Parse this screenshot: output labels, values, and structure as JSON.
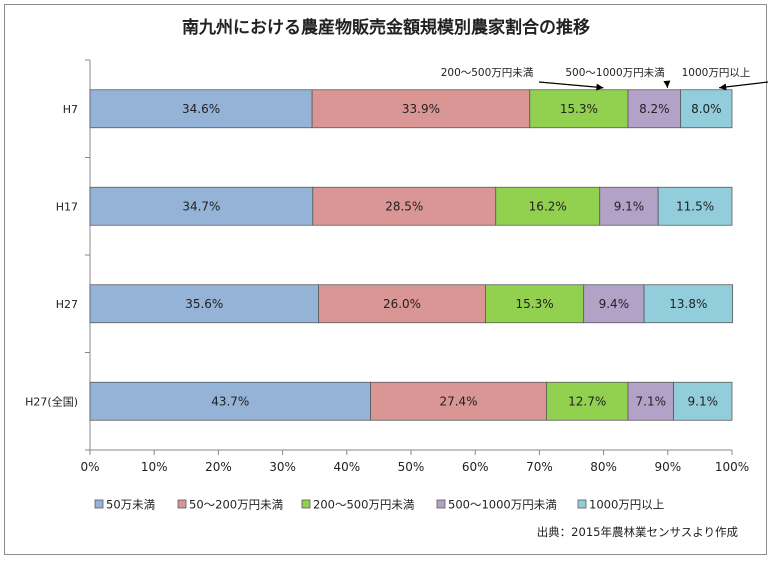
{
  "chart_data": {
    "type": "bar",
    "orientation": "horizontal",
    "stacked": "percent",
    "title": "南九州における農産物販売金額規模別農家割合の推移",
    "categories": [
      "H7",
      "H17",
      "H27",
      "H27(全国)"
    ],
    "series": [
      {
        "name": "50万未満",
        "color": "#95b3d7",
        "values": [
          34.6,
          34.7,
          35.6,
          43.7
        ],
        "labels": [
          "34.6%",
          "34.7%",
          "35.6%",
          "43.7%"
        ]
      },
      {
        "name": "50～200万円未満",
        "color": "#da9694",
        "values": [
          33.9,
          28.5,
          26.0,
          27.4
        ],
        "labels": [
          "33.9%",
          "28.5%",
          "26.0%",
          "27.4%"
        ]
      },
      {
        "name": "200～500万円未満",
        "color": "#92d050",
        "values": [
          15.3,
          16.2,
          15.3,
          12.7
        ],
        "labels": [
          "15.3%",
          "16.2%",
          "15.3%",
          "12.7%"
        ]
      },
      {
        "name": "500～1000万円未満",
        "color": "#b3a2c7",
        "values": [
          8.2,
          9.1,
          9.4,
          7.1
        ],
        "labels": [
          "8.2%",
          "9.1%",
          "9.4%",
          "7.1%"
        ]
      },
      {
        "name": "1000万円以上",
        "color": "#92cddc",
        "values": [
          8.0,
          11.5,
          13.8,
          9.1
        ],
        "labels": [
          "8.0%",
          "11.5%",
          "13.8%",
          "9.1%"
        ]
      }
    ],
    "x_ticks": [
      "0%",
      "10%",
      "20%",
      "30%",
      "40%",
      "50%",
      "60%",
      "70%",
      "80%",
      "90%",
      "100%"
    ],
    "xlim": [
      0,
      100
    ],
    "legend_position": "bottom",
    "annotations": [
      "200～500万円未満",
      "500～1000万円未満",
      "1000万円以上"
    ],
    "source": "出典：2015年農林業センサスより作成"
  }
}
